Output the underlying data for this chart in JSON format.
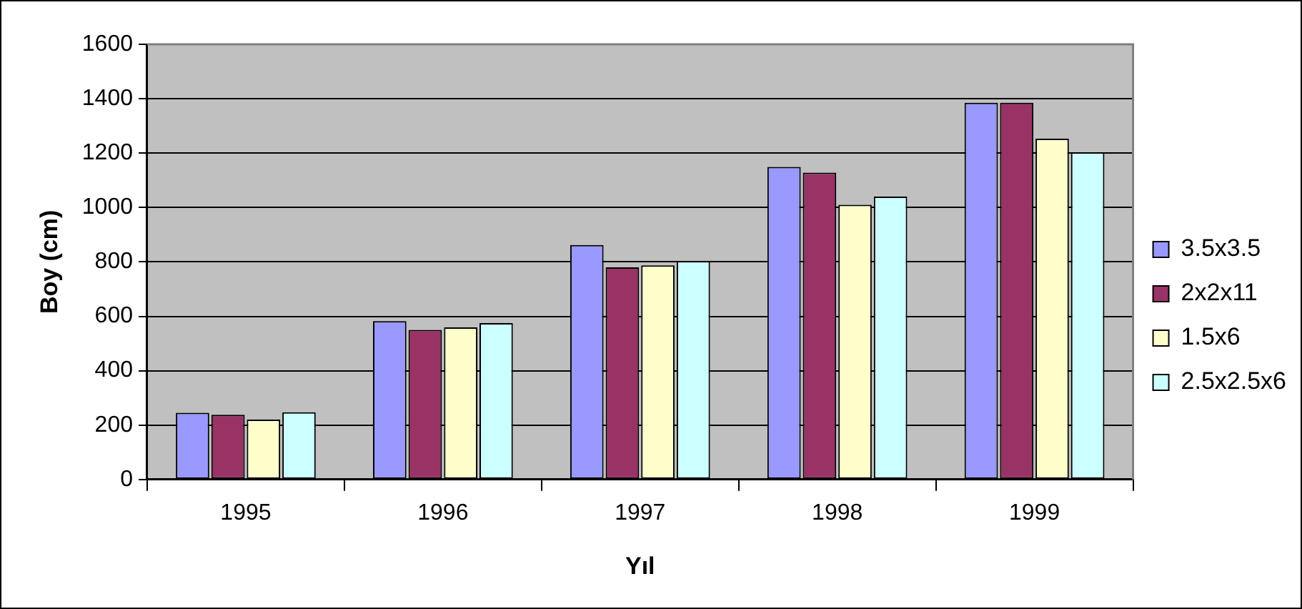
{
  "chart_data": {
    "type": "bar",
    "xlabel": "Yıl",
    "ylabel": "Boy (cm)",
    "categories": [
      "1995",
      "1996",
      "1997",
      "1998",
      "1999"
    ],
    "series": [
      {
        "name": "3.5x3.5",
        "color": "#9999ff",
        "values": [
          245,
          582,
          862,
          1149,
          1385
        ]
      },
      {
        "name": "2x2x11",
        "color": "#993366",
        "values": [
          238,
          550,
          780,
          1128,
          1385
        ]
      },
      {
        "name": "1.5x6",
        "color": "#ffffcc",
        "values": [
          220,
          559,
          787,
          1010,
          1253
        ]
      },
      {
        "name": "2.5x2.5x6",
        "color": "#ccffff",
        "values": [
          247,
          575,
          803,
          1040,
          1203
        ]
      }
    ],
    "ylim": [
      0,
      1600
    ],
    "yticks": [
      0,
      200,
      400,
      600,
      800,
      1000,
      1200,
      1400,
      1600
    ],
    "grid": "y",
    "legend": "right"
  }
}
